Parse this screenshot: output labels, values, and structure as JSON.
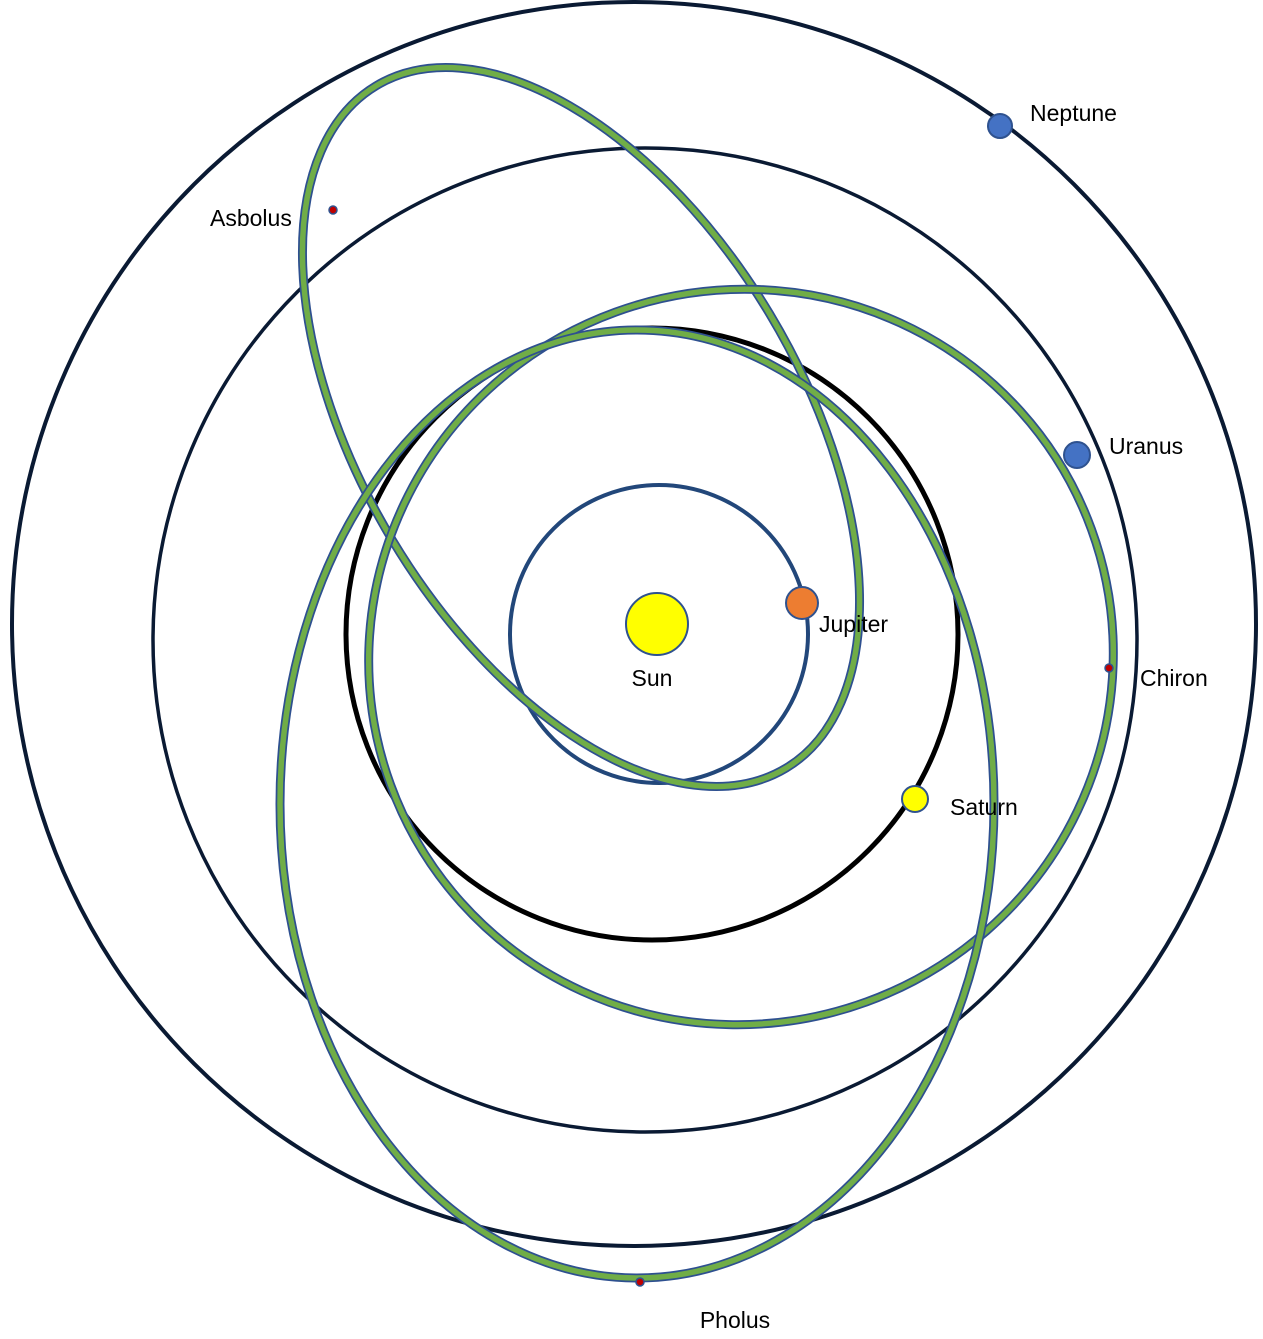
{
  "colors": {
    "planet_orbit": "#0a1a33",
    "inner_orbit": "#22477a",
    "centaur_orbit_fill": "#70ad47",
    "centaur_orbit_edge": "#2e5090",
    "sun": "#ffff00",
    "jupiter": "#ed7d31",
    "saturn": "#ffff00",
    "ice_giant": "#4472c4",
    "centaur_marker": "#c00000",
    "body_outline": "#2f528f"
  },
  "labels": {
    "sun": "Sun",
    "jupiter": "Jupiter",
    "saturn": "Saturn",
    "uranus": "Uranus",
    "neptune": "Neptune",
    "chiron": "Chiron",
    "asbolus": "Asbolus",
    "pholus": "Pholus"
  }
}
